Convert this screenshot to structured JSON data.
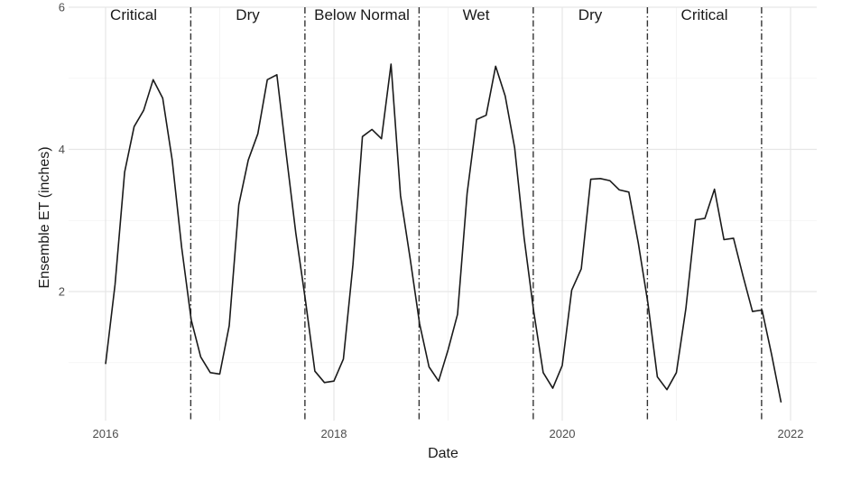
{
  "chart_data": {
    "type": "line",
    "xlabel": "Date",
    "ylabel": "Ensemble ET (inches)",
    "x_ticks": [
      "2016",
      "2018",
      "2020",
      "2022"
    ],
    "y_ticks": [
      "2",
      "4",
      "6"
    ],
    "xlim": [
      "2016-01",
      "2022-01"
    ],
    "ylim": [
      0.4,
      6.0
    ],
    "grid": true,
    "dividers": [
      "2016-09-30",
      "2017-09-30",
      "2018-09-30",
      "2019-09-30",
      "2020-09-30",
      "2021-09-30"
    ],
    "regions": [
      {
        "label": "Critical",
        "start": "2015-10",
        "end": "2016-09"
      },
      {
        "label": "Dry",
        "start": "2016-10",
        "end": "2017-09"
      },
      {
        "label": "Below Normal",
        "start": "2017-10",
        "end": "2018-09"
      },
      {
        "label": "Wet",
        "start": "2018-10",
        "end": "2019-09"
      },
      {
        "label": "Dry",
        "start": "2019-10",
        "end": "2020-09"
      },
      {
        "label": "Critical",
        "start": "2020-10",
        "end": "2021-09"
      }
    ],
    "series": [
      {
        "x": [
          "2016-01",
          "2016-02",
          "2016-03",
          "2016-04",
          "2016-05",
          "2016-06",
          "2016-07",
          "2016-08",
          "2016-09",
          "2016-10",
          "2016-11",
          "2016-12",
          "2017-01",
          "2017-02",
          "2017-03",
          "2017-04",
          "2017-05",
          "2017-06",
          "2017-07",
          "2017-08",
          "2017-09",
          "2017-10",
          "2017-11",
          "2017-12",
          "2018-01",
          "2018-02",
          "2018-03",
          "2018-04",
          "2018-05",
          "2018-06",
          "2018-07",
          "2018-08",
          "2018-09",
          "2018-10",
          "2018-11",
          "2018-12",
          "2019-01",
          "2019-02",
          "2019-03",
          "2019-04",
          "2019-05",
          "2019-06",
          "2019-07",
          "2019-08",
          "2019-09",
          "2019-10",
          "2019-11",
          "2019-12",
          "2020-01",
          "2020-02",
          "2020-03",
          "2020-04",
          "2020-05",
          "2020-06",
          "2020-07",
          "2020-08",
          "2020-09",
          "2020-10",
          "2020-11",
          "2020-12",
          "2021-01",
          "2021-02",
          "2021-03",
          "2021-04",
          "2021-05",
          "2021-06",
          "2021-07",
          "2021-08",
          "2021-09",
          "2021-10",
          "2021-11",
          "2021-12"
        ],
        "y": [
          0.98,
          2.1,
          3.68,
          4.32,
          4.55,
          4.98,
          4.72,
          3.85,
          2.62,
          1.6,
          1.08,
          0.86,
          0.84,
          1.52,
          3.22,
          3.85,
          4.22,
          4.98,
          5.05,
          3.92,
          2.82,
          1.88,
          0.88,
          0.72,
          0.74,
          1.05,
          2.38,
          4.18,
          4.28,
          4.15,
          5.2,
          3.35,
          2.48,
          1.55,
          0.94,
          0.74,
          1.18,
          1.68,
          3.38,
          4.42,
          4.48,
          5.17,
          4.75,
          4.02,
          2.75,
          1.72,
          0.86,
          0.64,
          0.96,
          2.02,
          2.32,
          3.58,
          3.59,
          3.56,
          3.43,
          3.4,
          2.68,
          1.84,
          0.8,
          0.62,
          0.86,
          1.76,
          3.01,
          3.03,
          3.44,
          2.73,
          2.75,
          2.22,
          1.72,
          1.74,
          1.12,
          0.44
        ]
      }
    ]
  }
}
